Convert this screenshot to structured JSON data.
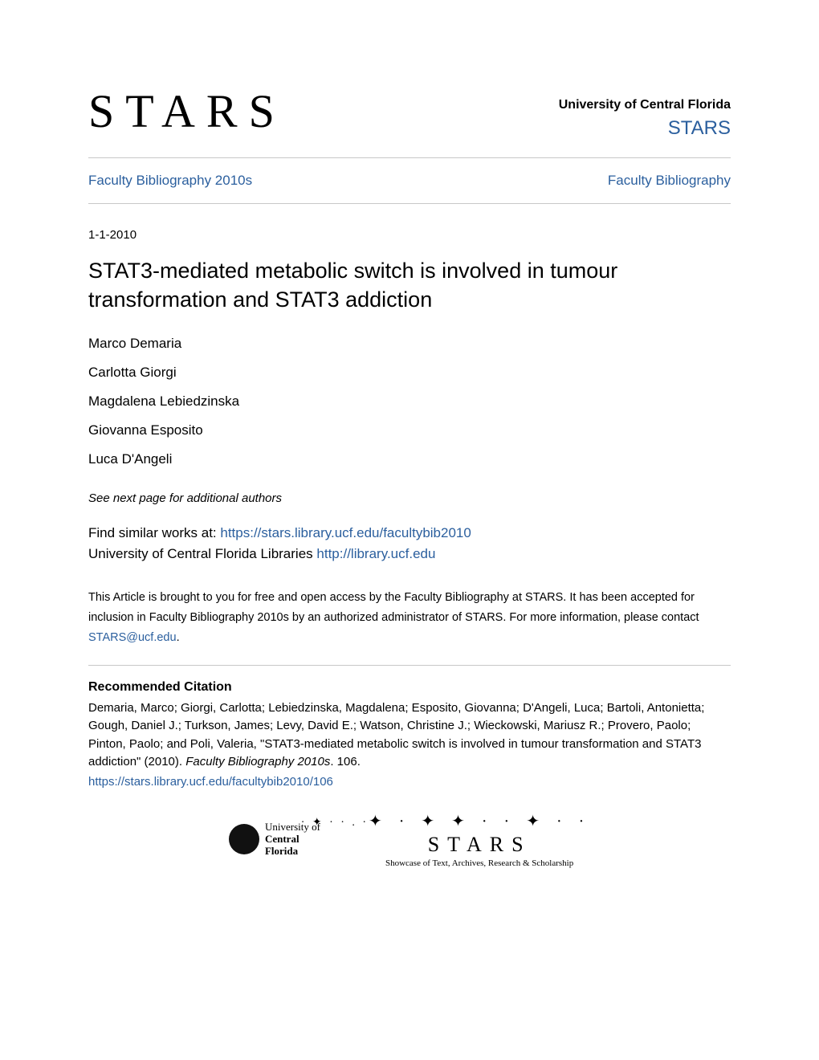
{
  "colors": {
    "link": "#2b5f9e",
    "text": "#000000",
    "divider": "#c8c8c8",
    "background": "#ffffff"
  },
  "header": {
    "logo_text": "STARS",
    "university": "University of Central Florida",
    "stars_link": "STARS"
  },
  "breadcrumb": {
    "left": "Faculty Bibliography 2010s",
    "right": "Faculty Bibliography"
  },
  "date": "1-1-2010",
  "title": "STAT3-mediated metabolic switch is involved in tumour transformation and STAT3 addiction",
  "authors": [
    "Marco Demaria",
    "Carlotta Giorgi",
    "Magdalena Lebiedzinska",
    "Giovanna Esposito",
    "Luca D'Angeli"
  ],
  "see_next": "See next page for additional authors",
  "similar": {
    "prefix": "Find similar works at: ",
    "url": "https://stars.library.ucf.edu/facultybib2010",
    "line2_prefix": "University of Central Florida Libraries ",
    "line2_url": "http://library.ucf.edu"
  },
  "access_note": {
    "text_before": "This Article is brought to you for free and open access by the Faculty Bibliography at STARS. It has been accepted for inclusion in Faculty Bibliography 2010s by an authorized administrator of STARS. For more information, please contact ",
    "email": "STARS@ucf.edu",
    "text_after": "."
  },
  "recommended": {
    "heading": "Recommended Citation",
    "citation_plain": "Demaria, Marco; Giorgi, Carlotta; Lebiedzinska, Magdalena; Esposito, Giovanna; D'Angeli, Luca; Bartoli, Antonietta; Gough, Daniel J.; Turkson, James; Levy, David E.; Watson, Christine J.; Wieckowski, Mariusz R.; Provero, Paolo; Pinton, Paolo; and Poli, Valeria, \"STAT3-mediated metabolic switch is involved in tumour transformation and STAT3 addiction\" (2010). ",
    "citation_italic": "Faculty Bibliography 2010s",
    "citation_tail": ". 106.",
    "link": "https://stars.library.ucf.edu/facultybib2010/106"
  },
  "footer": {
    "ucf": {
      "line1": "University of",
      "line2": "Central",
      "line3": "Florida"
    },
    "stars": {
      "word": "STARS",
      "tagline": "Showcase of Text, Archives, Research & Scholarship"
    }
  }
}
